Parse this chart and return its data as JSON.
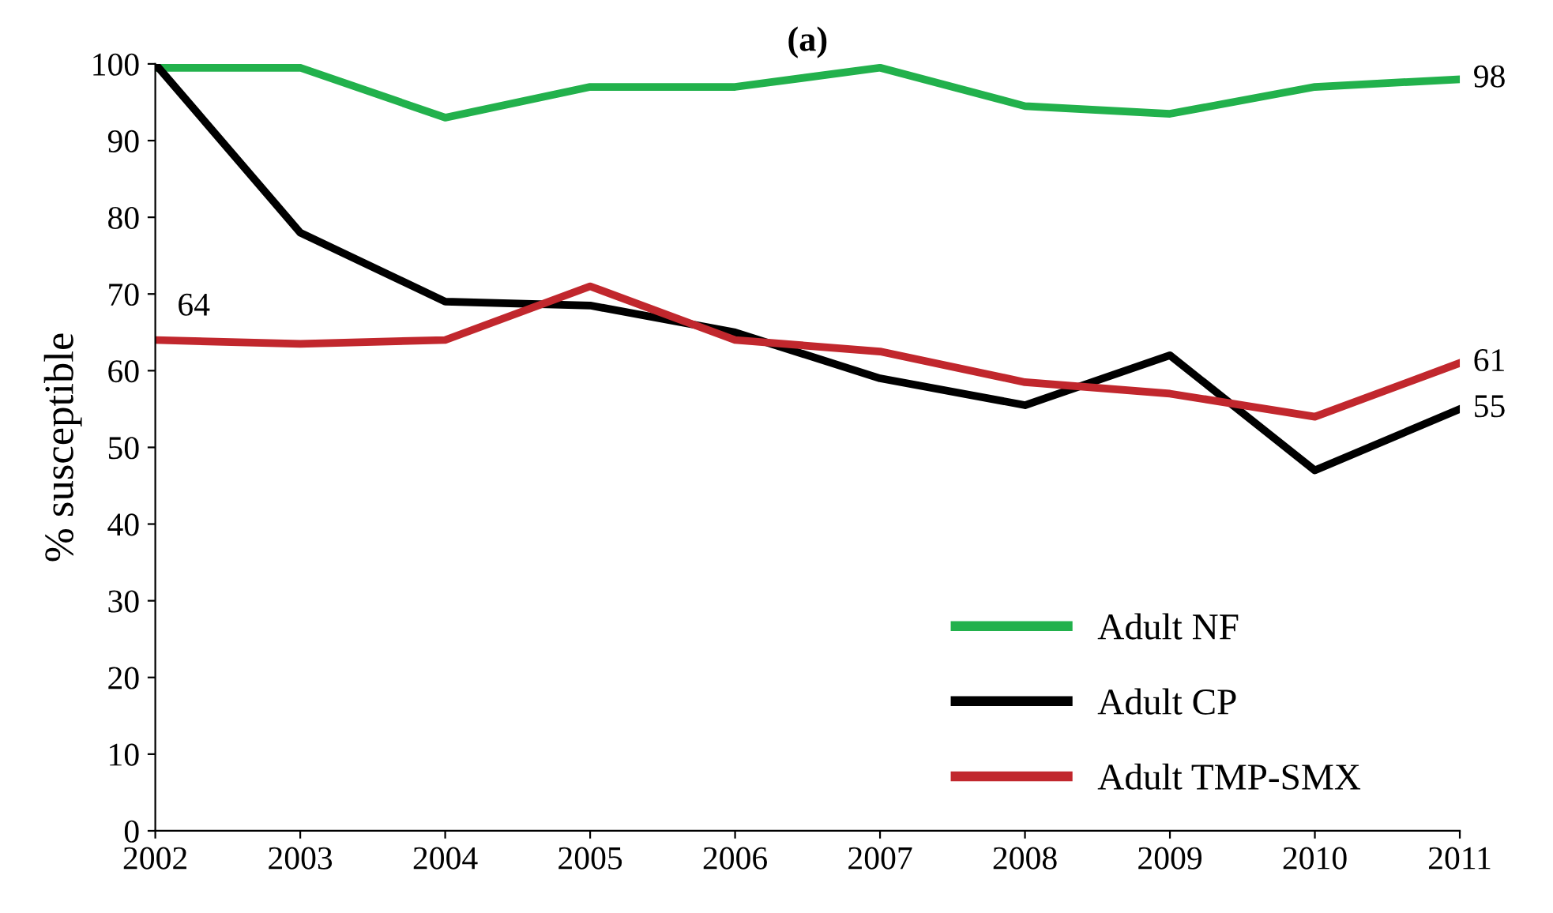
{
  "chart_data": {
    "type": "line",
    "title": "(a)",
    "ylabel": "% susceptible",
    "x": [
      2002,
      2003,
      2004,
      2005,
      2006,
      2007,
      2008,
      2009,
      2010,
      2011
    ],
    "series": [
      {
        "name": "Adult NF",
        "color": "#22b14c",
        "values": [
          99.5,
          99.5,
          93,
          97,
          97,
          99.5,
          94.5,
          93.5,
          97,
          98
        ],
        "value_labels": [
          null,
          null,
          null,
          null,
          null,
          null,
          null,
          null,
          null,
          "98"
        ]
      },
      {
        "name": "Adult CP",
        "color": "#000000",
        "values": [
          100,
          78,
          69,
          68.5,
          65,
          59,
          55.5,
          62,
          47,
          55
        ],
        "value_labels": [
          null,
          null,
          null,
          null,
          null,
          null,
          null,
          null,
          null,
          "55"
        ]
      },
      {
        "name": "Adult TMP-SMX",
        "color": "#c1272d",
        "values": [
          64,
          63.5,
          64,
          71,
          64,
          62.5,
          58.5,
          57,
          54,
          61
        ],
        "value_labels": [
          "64",
          null,
          null,
          null,
          null,
          null,
          null,
          null,
          null,
          "61"
        ]
      }
    ],
    "xlim": [
      2002,
      2011
    ],
    "xticks": [
      2002,
      2003,
      2004,
      2005,
      2006,
      2007,
      2008,
      2009,
      2010,
      2011
    ],
    "ylim": [
      0,
      100
    ],
    "yticks": [
      0,
      10,
      20,
      30,
      40,
      50,
      60,
      70,
      80,
      90,
      100
    ],
    "grid": false,
    "legend": "bottom right",
    "marker": "none",
    "line_style": "solid"
  }
}
